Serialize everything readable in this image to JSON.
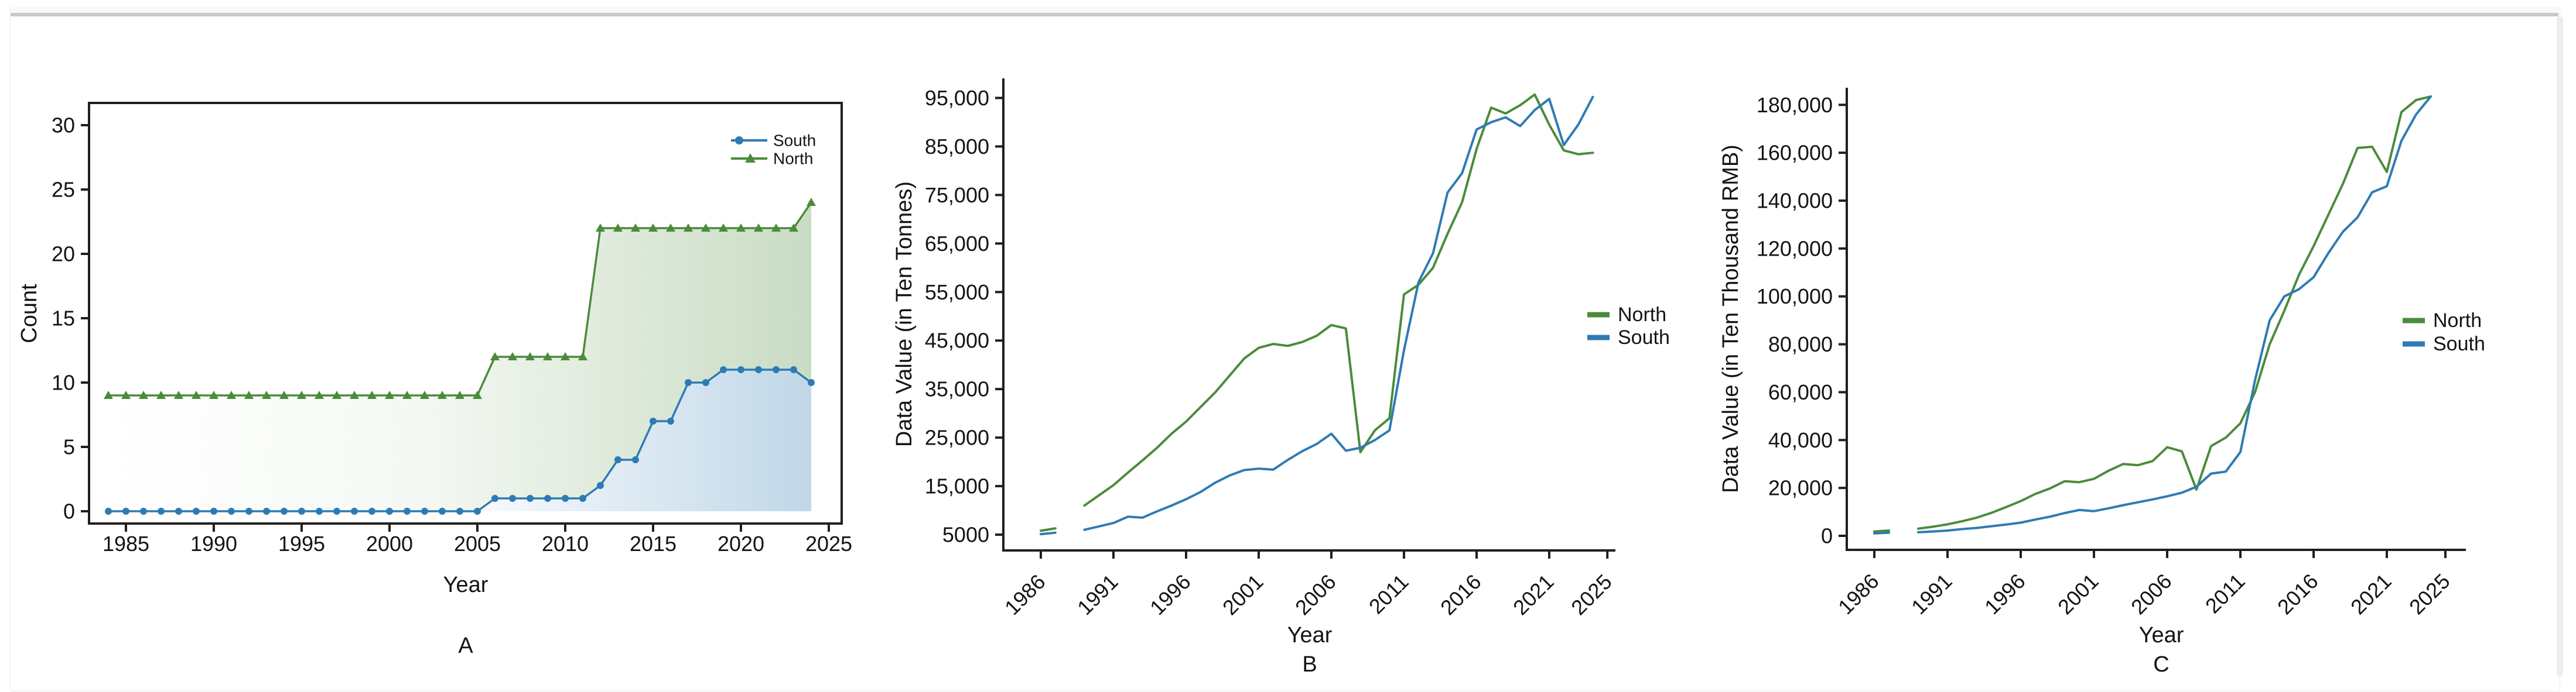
{
  "figure": {
    "panel_labels": [
      "A",
      "B",
      "C"
    ],
    "axis_label_year": "Year",
    "colors": {
      "north_green": "#4b8b3b",
      "south_blue": "#2e7bb4",
      "text": "#141414",
      "spine": "#1f1f1f"
    }
  },
  "chart_data": [
    {
      "id": "A",
      "type": "line",
      "panel_label": "A",
      "xlabel": "Year",
      "ylabel": "Count",
      "legend_position": "inside-top-right",
      "x_tick_values": [
        1985,
        1990,
        1995,
        2000,
        2005,
        2010,
        2015,
        2020,
        2025
      ],
      "x_tick_labels": [
        "1985",
        "1990",
        "1995",
        "2000",
        "2005",
        "2010",
        "2015",
        "2020",
        "2025"
      ],
      "y_tick_values": [
        0,
        5,
        10,
        15,
        20,
        25,
        30
      ],
      "y_tick_labels": [
        "0",
        "5",
        "10",
        "15",
        "20",
        "25",
        "30"
      ],
      "ylim": [
        -1,
        31.7
      ],
      "x": [
        1984,
        1985,
        1986,
        1987,
        1988,
        1989,
        1990,
        1991,
        1992,
        1993,
        1994,
        1995,
        1996,
        1997,
        1998,
        1999,
        2000,
        2001,
        2002,
        2003,
        2004,
        2005,
        2006,
        2007,
        2008,
        2009,
        2010,
        2011,
        2012,
        2013,
        2014,
        2015,
        2016,
        2017,
        2018,
        2019,
        2020,
        2021,
        2022,
        2023,
        2024
      ],
      "series": [
        {
          "name": "South",
          "color": "#2e7bb4",
          "marker": "circle",
          "area_fill": true,
          "values": [
            0,
            0,
            0,
            0,
            0,
            0,
            0,
            0,
            0,
            0,
            0,
            0,
            0,
            0,
            0,
            0,
            0,
            0,
            0,
            0,
            0,
            0,
            1,
            1,
            1,
            1,
            1,
            1,
            2,
            4,
            4,
            7,
            7,
            10,
            10,
            11,
            11,
            11,
            11,
            11,
            10
          ]
        },
        {
          "name": "North",
          "color": "#4b8b3b",
          "marker": "triangle",
          "area_fill": true,
          "values": [
            9,
            9,
            9,
            9,
            9,
            9,
            9,
            9,
            9,
            9,
            9,
            9,
            9,
            9,
            9,
            9,
            9,
            9,
            9,
            9,
            9,
            9,
            12,
            12,
            12,
            12,
            12,
            12,
            22,
            22,
            22,
            22,
            22,
            22,
            22,
            22,
            22,
            22,
            22,
            22,
            24
          ]
        }
      ],
      "legend_order": [
        "South",
        "North"
      ]
    },
    {
      "id": "B",
      "type": "line",
      "panel_label": "B",
      "xlabel": "Year",
      "ylabel": "Data Value (in Ten Tonnes)",
      "legend_position": "outside-right",
      "x_tick_values": [
        1986,
        1991,
        1996,
        2001,
        2006,
        2011,
        2016,
        2021,
        2025
      ],
      "x_tick_labels": [
        "1986",
        "1991",
        "1996",
        "2001",
        "2006",
        "2011",
        "2016",
        "2021",
        "2025"
      ],
      "y_tick_values": [
        5000,
        15000,
        25000,
        35000,
        45000,
        55000,
        65000,
        75000,
        85000,
        95000
      ],
      "y_tick_labels": [
        "5000",
        "15,000",
        "25,000",
        "35,000",
        "45,000",
        "55,000",
        "65,000",
        "75,000",
        "85,000",
        "95,000"
      ],
      "ylim": [
        1700,
        99000
      ],
      "x": [
        1986,
        1987,
        1988,
        1989,
        1990,
        1991,
        1992,
        1993,
        1994,
        1995,
        1996,
        1997,
        1998,
        1999,
        2000,
        2001,
        2002,
        2003,
        2004,
        2005,
        2006,
        2007,
        2008,
        2009,
        2010,
        2011,
        2012,
        2013,
        2014,
        2015,
        2016,
        2017,
        2018,
        2019,
        2020,
        2021,
        2022,
        2023,
        2024
      ],
      "series": [
        {
          "name": "North",
          "color": "#4b8b3b",
          "marker": "none",
          "area_fill": false,
          "values": [
            5800,
            6300,
            null,
            11000,
            13100,
            15200,
            17800,
            20300,
            22900,
            25800,
            28300,
            31300,
            34300,
            37800,
            41300,
            43500,
            44300,
            43900,
            44700,
            46000,
            48200,
            47500,
            22000,
            26500,
            29000,
            54500,
            56500,
            60000,
            67000,
            73500,
            84500,
            93000,
            91800,
            93500,
            95700,
            89500,
            84200,
            83400,
            83700
          ]
        },
        {
          "name": "South",
          "color": "#2e7bb4",
          "marker": "none",
          "area_fill": false,
          "values": [
            5100,
            5400,
            null,
            6000,
            6700,
            7400,
            8700,
            8500,
            9800,
            11000,
            12300,
            13800,
            15700,
            17200,
            18300,
            18600,
            18400,
            20400,
            22200,
            23700,
            25800,
            22300,
            22900,
            24500,
            26500,
            43000,
            57000,
            63000,
            75500,
            79500,
            88500,
            90000,
            91000,
            89200,
            92500,
            94800,
            85300,
            89500,
            95200
          ]
        }
      ],
      "legend_order": [
        "North",
        "South"
      ]
    },
    {
      "id": "C",
      "type": "line",
      "panel_label": "C",
      "xlabel": "Year",
      "ylabel": "Data Value (in Ten Thousand RMB)",
      "legend_position": "outside-right",
      "x_tick_values": [
        1986,
        1991,
        1996,
        2001,
        2006,
        2011,
        2016,
        2021,
        2025
      ],
      "x_tick_labels": [
        "1986",
        "1991",
        "1996",
        "2001",
        "2006",
        "2011",
        "2016",
        "2021",
        "2025"
      ],
      "y_tick_values": [
        0,
        20000,
        40000,
        60000,
        80000,
        100000,
        120000,
        140000,
        160000,
        180000
      ],
      "y_tick_labels": [
        "0",
        "20,000",
        "40,000",
        "60,000",
        "80,000",
        "100,000",
        "120,000",
        "140,000",
        "160,000",
        "180,000"
      ],
      "ylim": [
        -5800,
        186500
      ],
      "x": [
        1986,
        1987,
        1988,
        1989,
        1990,
        1991,
        1992,
        1993,
        1994,
        1995,
        1996,
        1997,
        1998,
        1999,
        2000,
        2001,
        2002,
        2003,
        2004,
        2005,
        2006,
        2007,
        2008,
        2009,
        2010,
        2011,
        2012,
        2013,
        2014,
        2015,
        2016,
        2017,
        2018,
        2019,
        2020,
        2021,
        2022,
        2023,
        2024
      ],
      "series": [
        {
          "name": "North",
          "color": "#4b8b3b",
          "marker": "none",
          "area_fill": false,
          "values": [
            1800,
            2200,
            null,
            3000,
            3800,
            4800,
            6100,
            7600,
            9600,
            12000,
            14500,
            17500,
            19800,
            22800,
            22400,
            23800,
            27200,
            30000,
            29500,
            31200,
            37000,
            35300,
            19300,
            37500,
            41000,
            47000,
            60000,
            80000,
            94000,
            109000,
            121000,
            134000,
            147000,
            162000,
            162500,
            152000,
            177000,
            182000,
            183500
          ]
        },
        {
          "name": "South",
          "color": "#2e7bb4",
          "marker": "none",
          "area_fill": false,
          "values": [
            1000,
            1300,
            null,
            1500,
            1800,
            2200,
            2800,
            3300,
            4000,
            4700,
            5500,
            6800,
            8000,
            9500,
            10800,
            10300,
            11500,
            12800,
            14000,
            15200,
            16500,
            18000,
            20500,
            26000,
            26800,
            35000,
            65000,
            90000,
            100000,
            103000,
            108000,
            118000,
            127000,
            133000,
            143500,
            146000,
            165000,
            176000,
            183500
          ]
        }
      ],
      "legend_order": [
        "North",
        "South"
      ]
    }
  ]
}
